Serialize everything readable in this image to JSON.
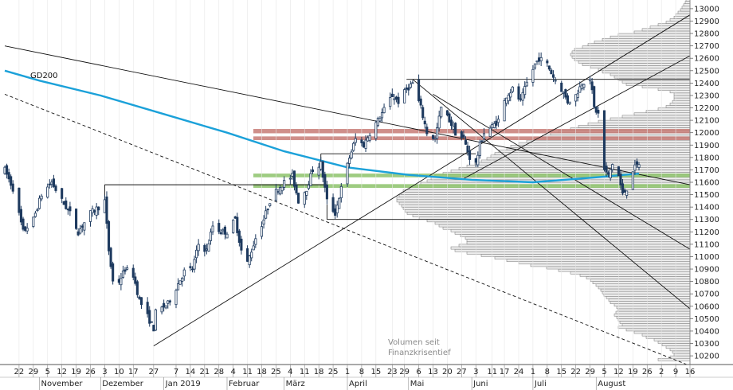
{
  "chart_data": {
    "type": "candlestick",
    "indicator_label": "GD200",
    "volume_profile_label": [
      "Volumen seit",
      "Finanzkrisentief"
    ],
    "y_ticks": [
      10200,
      10300,
      10400,
      10500,
      10600,
      10700,
      10800,
      10900,
      11000,
      11100,
      11200,
      11300,
      11400,
      11500,
      11600,
      11700,
      11800,
      11900,
      12000,
      12100,
      12200,
      12300,
      12400,
      12500,
      12600,
      12700,
      12800,
      12900,
      13000
    ],
    "ylim": [
      10130,
      13070
    ],
    "x_ticks": [
      {
        "label": "22",
        "date": "2018-10-22"
      },
      {
        "label": "29",
        "date": "2018-10-29"
      },
      {
        "label": "5",
        "date": "2018-11-05"
      },
      {
        "label": "12",
        "date": "2018-11-12"
      },
      {
        "label": "19",
        "date": "2018-11-19"
      },
      {
        "label": "26",
        "date": "2018-11-26"
      },
      {
        "label": "3",
        "date": "2018-12-03"
      },
      {
        "label": "10",
        "date": "2018-12-10"
      },
      {
        "label": "17",
        "date": "2018-12-17"
      },
      {
        "label": "27",
        "date": "2018-12-27"
      },
      {
        "label": "7",
        "date": "2019-01-07"
      },
      {
        "label": "14",
        "date": "2019-01-14"
      },
      {
        "label": "21",
        "date": "2019-01-21"
      },
      {
        "label": "28",
        "date": "2019-01-28"
      },
      {
        "label": "4",
        "date": "2019-02-04"
      },
      {
        "label": "11",
        "date": "2019-02-11"
      },
      {
        "label": "18",
        "date": "2019-02-18"
      },
      {
        "label": "25",
        "date": "2019-02-25"
      },
      {
        "label": "4",
        "date": "2019-03-04"
      },
      {
        "label": "11",
        "date": "2019-03-11"
      },
      {
        "label": "18",
        "date": "2019-03-18"
      },
      {
        "label": "25",
        "date": "2019-03-25"
      },
      {
        "label": "1",
        "date": "2019-04-01"
      },
      {
        "label": "8",
        "date": "2019-04-08"
      },
      {
        "label": "15",
        "date": "2019-04-15"
      },
      {
        "label": "23",
        "date": "2019-04-23"
      },
      {
        "label": "29",
        "date": "2019-04-29"
      },
      {
        "label": "6",
        "date": "2019-05-06"
      },
      {
        "label": "13",
        "date": "2019-05-13"
      },
      {
        "label": "20",
        "date": "2019-05-20"
      },
      {
        "label": "27",
        "date": "2019-05-27"
      },
      {
        "label": "3",
        "date": "2019-06-03"
      },
      {
        "label": "11",
        "date": "2019-06-11"
      },
      {
        "label": "17",
        "date": "2019-06-17"
      },
      {
        "label": "24",
        "date": "2019-06-24"
      },
      {
        "label": "1",
        "date": "2019-07-01"
      },
      {
        "label": "8",
        "date": "2019-07-08"
      },
      {
        "label": "15",
        "date": "2019-07-15"
      },
      {
        "label": "22",
        "date": "2019-07-22"
      },
      {
        "label": "29",
        "date": "2019-07-29"
      },
      {
        "label": "5",
        "date": "2019-08-05"
      },
      {
        "label": "12",
        "date": "2019-08-12"
      },
      {
        "label": "19",
        "date": "2019-08-19"
      },
      {
        "label": "26",
        "date": "2019-08-26"
      },
      {
        "label": "2",
        "date": "2019-09-02"
      },
      {
        "label": "9",
        "date": "2019-09-09"
      },
      {
        "label": "16",
        "date": "2019-09-16"
      }
    ],
    "month_labels": [
      {
        "label": "November",
        "date": "2018-11-01"
      },
      {
        "label": "Dezember",
        "date": "2018-12-01"
      },
      {
        "label": "Jan 2019",
        "date": "2019-01-01"
      },
      {
        "label": "Februar",
        "date": "2019-02-01"
      },
      {
        "label": "März",
        "date": "2019-03-01"
      },
      {
        "label": "April",
        "date": "2019-04-01"
      },
      {
        "label": "Mai",
        "date": "2019-05-01"
      },
      {
        "label": "Juni",
        "date": "2019-06-01"
      },
      {
        "label": "Juli",
        "date": "2019-07-01"
      },
      {
        "label": "August",
        "date": "2019-08-01"
      }
    ],
    "x_range": [
      "2018-10-15",
      "2019-09-16"
    ],
    "price_anchors": [
      [
        "2018-10-15",
        11700
      ],
      [
        "2018-10-19",
        11550
      ],
      [
        "2018-10-24",
        11200
      ],
      [
        "2018-10-29",
        11300
      ],
      [
        "2018-11-02",
        11500
      ],
      [
        "2018-11-07",
        11600
      ],
      [
        "2018-11-12",
        11450
      ],
      [
        "2018-11-16",
        11350
      ],
      [
        "2018-11-20",
        11200
      ],
      [
        "2018-11-26",
        11350
      ],
      [
        "2018-11-30",
        11400
      ],
      [
        "2018-12-03",
        11450
      ],
      [
        "2018-12-05",
        11050
      ],
      [
        "2018-12-07",
        10800
      ],
      [
        "2018-12-10",
        10800
      ],
      [
        "2018-12-13",
        10900
      ],
      [
        "2018-12-17",
        10850
      ],
      [
        "2018-12-20",
        10650
      ],
      [
        "2018-12-27",
        10420
      ],
      [
        "2018-12-28",
        10550
      ],
      [
        "2019-01-03",
        10620
      ],
      [
        "2019-01-07",
        10750
      ],
      [
        "2019-01-11",
        10880
      ],
      [
        "2019-01-15",
        10900
      ],
      [
        "2019-01-18",
        11100
      ],
      [
        "2019-01-22",
        11050
      ],
      [
        "2019-01-25",
        11250
      ],
      [
        "2019-01-29",
        11200
      ],
      [
        "2019-02-01",
        11200
      ],
      [
        "2019-02-05",
        11300
      ],
      [
        "2019-02-08",
        11050
      ],
      [
        "2019-02-11",
        10950
      ],
      [
        "2019-02-15",
        11150
      ],
      [
        "2019-02-19",
        11300
      ],
      [
        "2019-02-22",
        11450
      ],
      [
        "2019-02-26",
        11550
      ],
      [
        "2019-03-01",
        11600
      ],
      [
        "2019-03-05",
        11650
      ],
      [
        "2019-03-08",
        11450
      ],
      [
        "2019-03-12",
        11550
      ],
      [
        "2019-03-15",
        11700
      ],
      [
        "2019-03-19",
        11750
      ],
      [
        "2019-03-22",
        11450
      ],
      [
        "2019-03-26",
        11350
      ],
      [
        "2019-03-29",
        11550
      ],
      [
        "2019-04-02",
        11800
      ],
      [
        "2019-04-05",
        11950
      ],
      [
        "2019-04-09",
        11900
      ],
      [
        "2019-04-12",
        12000
      ],
      [
        "2019-04-16",
        12100
      ],
      [
        "2019-04-23",
        12300
      ],
      [
        "2019-04-26",
        12250
      ],
      [
        "2019-04-30",
        12350
      ],
      [
        "2019-05-03",
        12400
      ],
      [
        "2019-05-07",
        12200
      ],
      [
        "2019-05-10",
        12000
      ],
      [
        "2019-05-14",
        11950
      ],
      [
        "2019-05-17",
        12200
      ],
      [
        "2019-05-21",
        12100
      ],
      [
        "2019-05-24",
        12000
      ],
      [
        "2019-05-28",
        11950
      ],
      [
        "2019-05-31",
        11800
      ],
      [
        "2019-06-03",
        11750
      ],
      [
        "2019-06-05",
        11900
      ],
      [
        "2019-06-07",
        12000
      ],
      [
        "2019-06-11",
        12050
      ],
      [
        "2019-06-14",
        12100
      ],
      [
        "2019-06-18",
        12300
      ],
      [
        "2019-06-21",
        12350
      ],
      [
        "2019-06-25",
        12250
      ],
      [
        "2019-06-28",
        12400
      ],
      [
        "2019-07-02",
        12550
      ],
      [
        "2019-07-04",
        12600
      ],
      [
        "2019-07-08",
        12550
      ],
      [
        "2019-07-11",
        12450
      ],
      [
        "2019-07-15",
        12350
      ],
      [
        "2019-07-18",
        12250
      ],
      [
        "2019-07-22",
        12300
      ],
      [
        "2019-07-25",
        12400
      ],
      [
        "2019-07-29",
        12450
      ],
      [
        "2019-07-31",
        12200
      ],
      [
        "2019-08-02",
        12150
      ],
      [
        "2019-08-05",
        11700
      ],
      [
        "2019-08-07",
        11650
      ],
      [
        "2019-08-09",
        11750
      ],
      [
        "2019-08-12",
        11650
      ],
      [
        "2019-08-14",
        11500
      ],
      [
        "2019-08-16",
        11550
      ],
      [
        "2019-08-19",
        11700
      ],
      [
        "2019-08-22",
        11750
      ]
    ],
    "gd200_anchors": [
      [
        "2018-10-15",
        12500
      ],
      [
        "2018-11-01",
        12420
      ],
      [
        "2018-12-01",
        12300
      ],
      [
        "2019-01-01",
        12150
      ],
      [
        "2019-02-01",
        12000
      ],
      [
        "2019-03-01",
        11850
      ],
      [
        "2019-04-01",
        11720
      ],
      [
        "2019-05-01",
        11660
      ],
      [
        "2019-06-01",
        11620
      ],
      [
        "2019-07-01",
        11600
      ],
      [
        "2019-08-01",
        11640
      ],
      [
        "2019-08-22",
        11670
      ]
    ],
    "volume_profile": [
      40,
      25,
      20,
      22,
      25,
      30,
      35,
      40,
      45,
      55,
      60,
      70,
      80,
      90,
      85,
      88,
      90,
      92,
      95,
      93,
      90,
      92,
      95,
      100,
      102,
      105,
      108,
      110,
      112,
      115,
      118,
      122,
      125,
      130,
      138,
      150,
      165,
      180,
      200,
      215,
      230,
      245,
      262,
      280,
      295,
      300,
      290,
      280,
      280,
      282,
      288,
      295,
      300,
      310,
      315,
      320,
      330,
      340,
      348,
      355,
      358,
      360,
      362,
      365,
      368,
      368,
      365,
      362,
      360,
      352,
      345,
      338,
      330,
      325,
      320,
      310,
      300,
      290,
      280,
      270,
      262,
      255,
      250,
      245,
      240,
      230,
      225,
      215,
      205,
      195,
      185,
      175,
      165,
      150,
      140,
      128,
      115,
      100,
      85,
      70,
      55,
      40,
      30,
      25,
      22,
      20,
      20,
      20,
      25,
      40,
      60,
      80,
      85,
      90,
      95,
      100,
      110,
      115,
      125,
      135,
      140,
      145,
      148,
      150,
      148,
      145,
      135,
      128,
      120,
      110,
      100,
      90,
      70,
      60,
      50,
      40,
      30,
      25,
      20,
      18,
      15,
      12,
      10,
      8,
      6,
      5,
      5,
      5,
      6,
      8,
      10,
      12
    ],
    "volume_profile_start": 10160,
    "volume_profile_step": 20,
    "zones": [
      {
        "low": 11940,
        "high": 11970,
        "color": "#c77b76"
      },
      {
        "low": 11995,
        "high": 12030,
        "color": "#c77b76"
      },
      {
        "low": 11555,
        "high": 11585,
        "color": "#8dc36b"
      },
      {
        "low": 11640,
        "high": 11670,
        "color": "#8dc36b"
      }
    ],
    "colors": {
      "up_candle": "#ffffff",
      "down_candle": "#1e3a5f",
      "gd200": "#1ba1d9",
      "trend": "#111111",
      "profile_fill": "#ececec",
      "profile_stroke": "#777777",
      "volume_label": "#8a8a8a"
    }
  }
}
